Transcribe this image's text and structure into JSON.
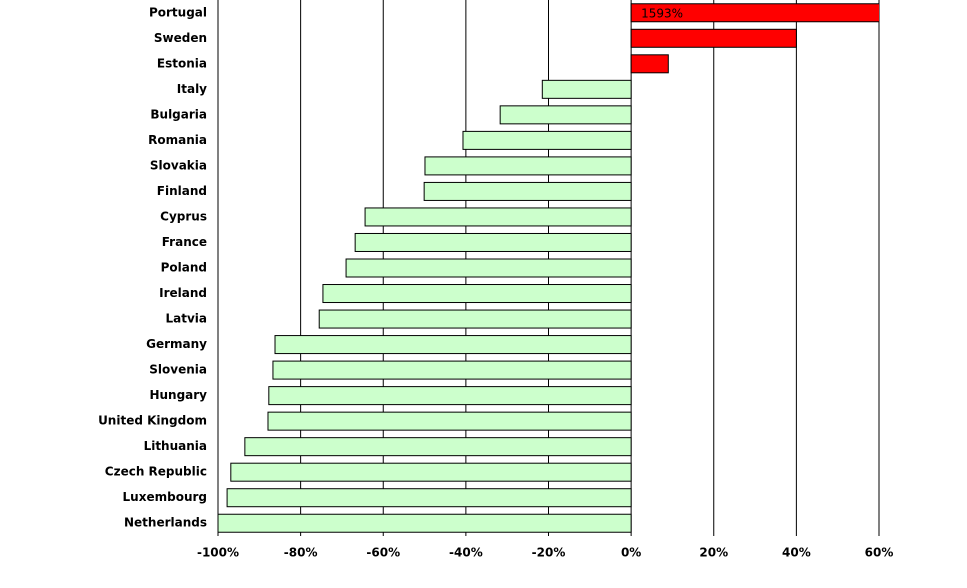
{
  "chart_data": {
    "type": "bar",
    "orientation": "horizontal",
    "categories": [
      "Portugal",
      "Sweden",
      "Estonia",
      "Italy",
      "Bulgaria",
      "Romania",
      "Slovakia",
      "Finland",
      "Cyprus",
      "France",
      "Poland",
      "Ireland",
      "Latvia",
      "Germany",
      "Slovenia",
      "Hungary",
      "United Kingdom",
      "Lithuania",
      "Czech Republic",
      "Luxembourg",
      "Netherlands"
    ],
    "values": [
      1593,
      40,
      9,
      -21.5,
      -31.7,
      -40.7,
      -49.9,
      -50.1,
      -64.4,
      -66.8,
      -69,
      -74.6,
      -75.5,
      -86.2,
      -86.7,
      -87.7,
      -87.9,
      -93.5,
      -96.9,
      -97.8,
      -100
    ],
    "value_labels": [
      "1593%",
      null,
      null,
      null,
      null,
      null,
      null,
      null,
      null,
      null,
      null,
      null,
      null,
      null,
      null,
      null,
      null,
      null,
      null,
      null,
      null
    ],
    "positive_color": "#ff0000",
    "negative_color": "#ccffcc",
    "xlim": [
      -100,
      60
    ],
    "xticks": [
      {
        "value": -100,
        "label": "-100%"
      },
      {
        "value": -80,
        "label": "-80%"
      },
      {
        "value": -60,
        "label": "-60%"
      },
      {
        "value": -40,
        "label": "-40%"
      },
      {
        "value": -20,
        "label": "-20%"
      },
      {
        "value": 0,
        "label": "0%"
      },
      {
        "value": 20,
        "label": "20%"
      },
      {
        "value": 40,
        "label": "40%"
      },
      {
        "value": 60,
        "label": "60%"
      }
    ],
    "grid": true
  }
}
